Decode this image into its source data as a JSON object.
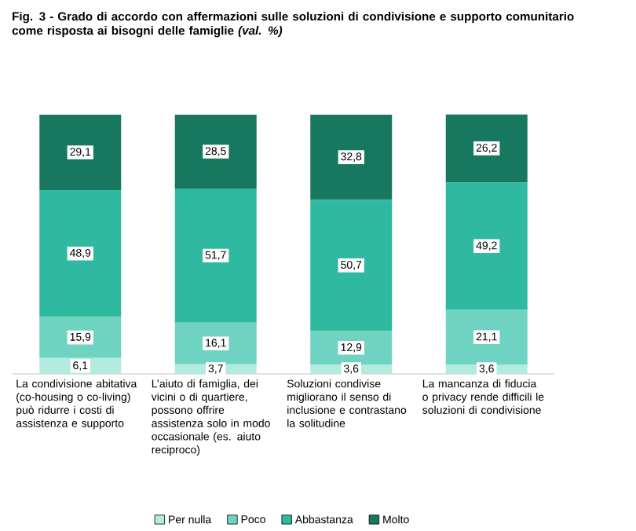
{
  "chart_data": {
    "type": "bar",
    "stacked": true,
    "title": "Fig. 3 - Grado di accordo con affermazioni sulle soluzioni di condivisione e supporto comunitario come risposta ai bisogni delle famiglie *(val. %)*",
    "categories": [
      "La condivisione abitativa (co-housing o co-living) può ridurre i costi di assistenza e supporto",
      "L’aiuto di famiglia, dei vicini o di quartiere, possono offrire assistenza solo in modo occasionale (es. aiuto reciproco)",
      "Soluzioni condivise migliorano il senso di inclusione e contrastano la solitudine",
      "La mancanza di fiducia o privacy rende difficili le soluzioni di condivisione"
    ],
    "series": [
      {
        "name": "Per nulla",
        "color": "#b3ebe1",
        "values": [
          6.1,
          3.7,
          3.6,
          3.6
        ],
        "value_labels": [
          "6,1",
          "3,7",
          "3,6",
          "3,6"
        ]
      },
      {
        "name": "Poco",
        "color": "#6fd3c1",
        "values": [
          15.9,
          16.1,
          12.9,
          21.1
        ],
        "value_labels": [
          "15,9",
          "16,1",
          "12,9",
          "21,1"
        ]
      },
      {
        "name": "Abbastanza",
        "color": "#2fb9a0",
        "values": [
          48.9,
          51.7,
          50.7,
          49.2
        ],
        "value_labels": [
          "48,9",
          "51,7",
          "50,7",
          "49,2"
        ]
      },
      {
        "name": "Molto",
        "color": "#17785f",
        "values": [
          29.1,
          28.5,
          32.8,
          26.2
        ],
        "value_labels": [
          "29,1",
          "28,5",
          "32,8",
          "26,2"
        ]
      }
    ],
    "ylim": [
      0,
      100
    ],
    "tick_labels": "x",
    "legend": "bottom"
  }
}
